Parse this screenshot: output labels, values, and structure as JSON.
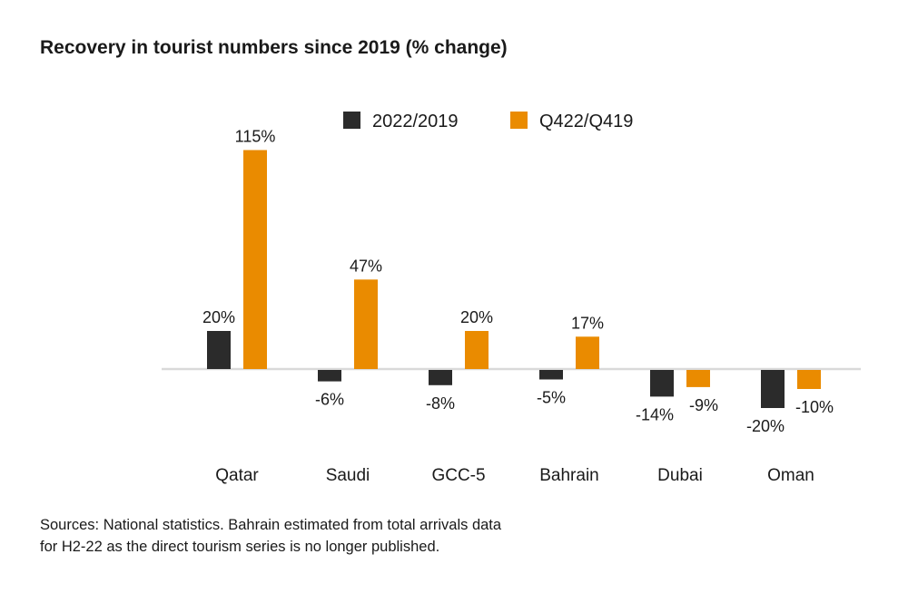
{
  "chart_data": {
    "type": "bar",
    "title": "Recovery in tourist numbers since 2019 (% change)",
    "categories": [
      "Qatar",
      "Saudi",
      "GCC-5",
      "Bahrain",
      "Dubai",
      "Oman"
    ],
    "series": [
      {
        "name": "2022/2019",
        "color": "#2b2b2b",
        "values": [
          20,
          -6,
          -8,
          -5,
          -14,
          -20
        ]
      },
      {
        "name": "Q422/Q419",
        "color": "#ea8b00",
        "values": [
          115,
          47,
          20,
          17,
          -9,
          -10
        ]
      }
    ],
    "value_suffix": "%",
    "ylim": [
      -25,
      120
    ],
    "grid": false,
    "legend_position": "top-right",
    "zero_line_color": "#d9d9d9"
  },
  "source_lines": [
    "Sources: National statistics. Bahrain estimated from total arrivals data",
    "for H2-22 as the direct tourism series is no longer published."
  ]
}
